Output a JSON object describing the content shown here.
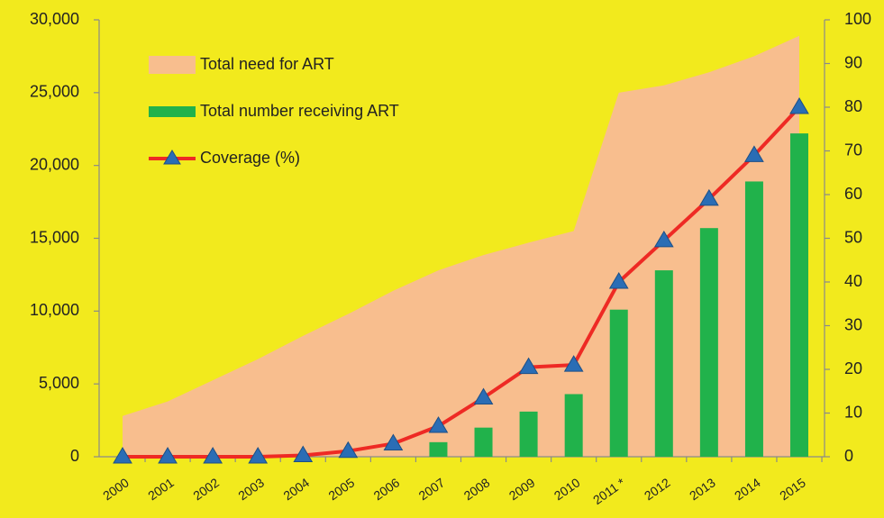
{
  "chart_data": {
    "type": "combo",
    "categories": [
      "2000",
      "2001",
      "2002",
      "2003",
      "2004",
      "2005",
      "2006",
      "2007",
      "2008",
      "2009",
      "2010",
      "2011 *",
      "2012",
      "2013",
      "2014",
      "2015"
    ],
    "series": [
      {
        "name": "Total need for ART",
        "kind": "area",
        "color": "#f8be8e",
        "values": [
          2800,
          3800,
          5250,
          6700,
          8300,
          9800,
          11400,
          12800,
          13850,
          14700,
          15500,
          25000,
          25500,
          26400,
          27500,
          28900
        ]
      },
      {
        "name": "Total number receiving ART",
        "kind": "bar",
        "color": "#21b24b",
        "values": [
          0,
          0,
          0,
          0,
          0,
          0,
          0,
          1000,
          2000,
          3100,
          4300,
          10100,
          12800,
          15700,
          18900,
          22200
        ]
      },
      {
        "name": "Coverage (%)",
        "kind": "line",
        "axis": "y2",
        "color": "#ee2a24",
        "marker_color": "#2a6db5",
        "values": [
          0,
          0,
          0,
          0,
          0.3,
          1.3,
          3,
          7,
          13.5,
          20.5,
          21,
          40,
          49.5,
          59,
          69,
          80
        ]
      }
    ],
    "ylim": [
      0,
      30000
    ],
    "yticks": [
      0,
      {
        "value": 5000,
        "label": "5,000"
      },
      {
        "value": 10000,
        "label": "10,000"
      },
      {
        "value": 15000,
        "label": "15,000"
      },
      {
        "value": 20000,
        "label": "20,000"
      },
      {
        "value": 25000,
        "label": "25,000"
      },
      {
        "value": 30000,
        "label": "30,000"
      }
    ],
    "y2lim": [
      0,
      100
    ],
    "y2ticks": [
      0,
      10,
      20,
      30,
      40,
      50,
      60,
      70,
      80,
      90,
      100
    ],
    "legend": "top-left"
  }
}
